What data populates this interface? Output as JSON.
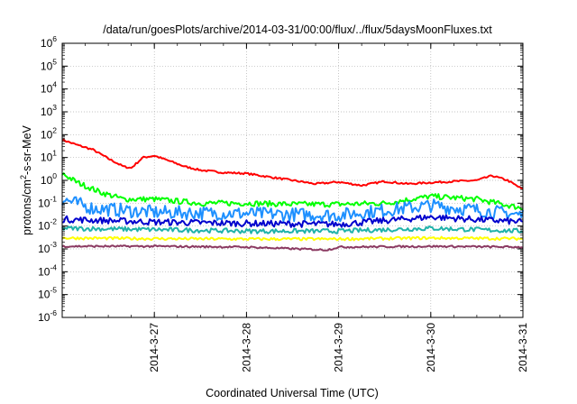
{
  "chart_data": {
    "type": "line",
    "title": "/data/run/goesPlots/archive/2014-03-31/00:00/flux/../flux/5daysMoonFluxes.txt",
    "xlabel": "Coordinated Universal Time (UTC)",
    "ylabel": {
      "base": "protons/cm",
      "sup": "2",
      "rest": "-s-sr-MeV"
    },
    "y_scale": "log",
    "ylim": [
      1e-06,
      1000000.0
    ],
    "y_ticks": [
      {
        "value": 1e-06,
        "base": "10",
        "exp": "-6"
      },
      {
        "value": 1e-05,
        "base": "10",
        "exp": "-5"
      },
      {
        "value": 0.0001,
        "base": "10",
        "exp": "-4"
      },
      {
        "value": 0.001,
        "base": "10",
        "exp": "-3"
      },
      {
        "value": 0.01,
        "base": "10",
        "exp": "-2"
      },
      {
        "value": 0.1,
        "base": "10",
        "exp": "-1"
      },
      {
        "value": 1,
        "base": "10",
        "exp": "0"
      },
      {
        "value": 10,
        "base": "10",
        "exp": "1"
      },
      {
        "value": 100,
        "base": "10",
        "exp": "2"
      },
      {
        "value": 1000,
        "base": "10",
        "exp": "3"
      },
      {
        "value": 10000,
        "base": "10",
        "exp": "4"
      },
      {
        "value": 100000,
        "base": "10",
        "exp": "5"
      },
      {
        "value": 1000000,
        "base": "10",
        "exp": "6"
      }
    ],
    "xlim": [
      "2014-03-26T00:00",
      "2014-03-31T00:00"
    ],
    "x_ticks": [
      {
        "value": "2014-03-27T00:00",
        "label": "2014-3-27"
      },
      {
        "value": "2014-03-28T00:00",
        "label": "2014-3-28"
      },
      {
        "value": "2014-03-29T00:00",
        "label": "2014-3-29"
      },
      {
        "value": "2014-03-30T00:00",
        "label": "2014-3-30"
      },
      {
        "value": "2014-03-31T00:00",
        "label": "2014-3-31"
      }
    ],
    "grid": true,
    "series": [
      {
        "color": "#ff0000",
        "noise": 0.04,
        "points": [
          [
            "2014-03-26T00:00",
            60
          ],
          [
            "2014-03-26T04:00",
            35
          ],
          [
            "2014-03-26T08:00",
            22
          ],
          [
            "2014-03-26T12:00",
            9
          ],
          [
            "2014-03-26T16:00",
            4
          ],
          [
            "2014-03-26T18:00",
            3.5
          ],
          [
            "2014-03-26T21:00",
            10
          ],
          [
            "2014-03-27T00:00",
            12
          ],
          [
            "2014-03-27T04:00",
            7
          ],
          [
            "2014-03-27T08:00",
            4
          ],
          [
            "2014-03-27T12:00",
            2.8
          ],
          [
            "2014-03-27T18:00",
            2.2
          ],
          [
            "2014-03-28T00:00",
            2.0
          ],
          [
            "2014-03-28T06:00",
            1.4
          ],
          [
            "2014-03-28T12:00",
            1.0
          ],
          [
            "2014-03-28T18:00",
            0.7
          ],
          [
            "2014-03-29T00:00",
            0.85
          ],
          [
            "2014-03-29T06:00",
            0.6
          ],
          [
            "2014-03-29T12:00",
            0.9
          ],
          [
            "2014-03-29T18:00",
            0.7
          ],
          [
            "2014-03-30T00:00",
            0.8
          ],
          [
            "2014-03-30T06:00",
            0.9
          ],
          [
            "2014-03-30T12:00",
            1.0
          ],
          [
            "2014-03-30T16:00",
            1.6
          ],
          [
            "2014-03-30T20:00",
            1.0
          ],
          [
            "2014-03-31T00:00",
            0.4
          ]
        ]
      },
      {
        "color": "#00ff00",
        "noise": 0.12,
        "points": [
          [
            "2014-03-26T00:00",
            2.0
          ],
          [
            "2014-03-26T04:00",
            0.8
          ],
          [
            "2014-03-26T10:00",
            0.3
          ],
          [
            "2014-03-26T16:00",
            0.15
          ],
          [
            "2014-03-27T00:00",
            0.15
          ],
          [
            "2014-03-27T12:00",
            0.1
          ],
          [
            "2014-03-28T00:00",
            0.1
          ],
          [
            "2014-03-28T12:00",
            0.09
          ],
          [
            "2014-03-29T00:00",
            0.09
          ],
          [
            "2014-03-29T12:00",
            0.1
          ],
          [
            "2014-03-30T00:00",
            0.2
          ],
          [
            "2014-03-30T12:00",
            0.15
          ],
          [
            "2014-03-31T00:00",
            0.06
          ]
        ]
      },
      {
        "color": "#1e90ff",
        "noise": 0.3,
        "points": [
          [
            "2014-03-26T00:00",
            0.15
          ],
          [
            "2014-03-26T08:00",
            0.06
          ],
          [
            "2014-03-27T00:00",
            0.04
          ],
          [
            "2014-03-28T00:00",
            0.035
          ],
          [
            "2014-03-29T00:00",
            0.03
          ],
          [
            "2014-03-30T00:00",
            0.08
          ],
          [
            "2014-03-30T12:00",
            0.05
          ],
          [
            "2014-03-31T00:00",
            0.03
          ]
        ]
      },
      {
        "color": "#0000cd",
        "noise": 0.14,
        "points": [
          [
            "2014-03-26T00:00",
            0.02
          ],
          [
            "2014-03-27T00:00",
            0.015
          ],
          [
            "2014-03-28T00:00",
            0.013
          ],
          [
            "2014-03-29T00:00",
            0.012
          ],
          [
            "2014-03-30T00:00",
            0.025
          ],
          [
            "2014-03-31T00:00",
            0.015
          ]
        ]
      },
      {
        "color": "#20b2aa",
        "noise": 0.1,
        "points": [
          [
            "2014-03-26T00:00",
            0.008
          ],
          [
            "2014-03-27T00:00",
            0.007
          ],
          [
            "2014-03-28T00:00",
            0.006
          ],
          [
            "2014-03-29T00:00",
            0.006
          ],
          [
            "2014-03-30T00:00",
            0.008
          ],
          [
            "2014-03-31T00:00",
            0.006
          ]
        ]
      },
      {
        "color": "#ffff00",
        "noise": 0.06,
        "points": [
          [
            "2014-03-26T00:00",
            0.003
          ],
          [
            "2014-03-27T00:00",
            0.0028
          ],
          [
            "2014-03-28T00:00",
            0.0027
          ],
          [
            "2014-03-29T00:00",
            0.0027
          ],
          [
            "2014-03-30T00:00",
            0.003
          ],
          [
            "2014-03-31T00:00",
            0.0028
          ]
        ]
      },
      {
        "color": "#8b3a62",
        "noise": 0.04,
        "points": [
          [
            "2014-03-26T00:00",
            0.0013
          ],
          [
            "2014-03-27T00:00",
            0.0013
          ],
          [
            "2014-03-28T00:00",
            0.0012
          ],
          [
            "2014-03-28T21:00",
            0.0009
          ],
          [
            "2014-03-29T00:00",
            0.0012
          ],
          [
            "2014-03-30T00:00",
            0.0013
          ],
          [
            "2014-03-31T00:00",
            0.0012
          ]
        ]
      }
    ]
  }
}
